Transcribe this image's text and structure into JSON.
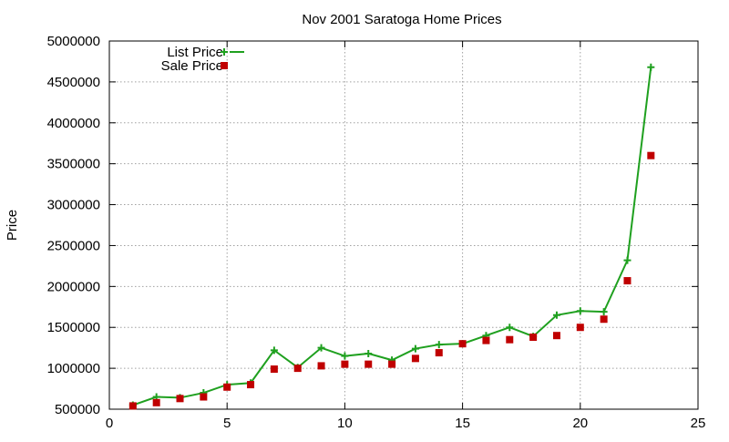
{
  "chart_data": {
    "type": "line",
    "title": "Nov 2001 Saratoga Home Prices",
    "xlabel": "",
    "ylabel": "Price",
    "xlim": [
      0,
      25
    ],
    "ylim": [
      500000,
      5000000
    ],
    "xticks": [
      0,
      5,
      10,
      15,
      20,
      25
    ],
    "yticks": [
      500000,
      1000000,
      1500000,
      2000000,
      2500000,
      3000000,
      3500000,
      4000000,
      4500000,
      5000000
    ],
    "grid": true,
    "legend_position": "top-left",
    "x": [
      1,
      2,
      3,
      4,
      5,
      6,
      7,
      8,
      9,
      10,
      11,
      12,
      13,
      14,
      15,
      16,
      17,
      18,
      19,
      20,
      21,
      22,
      23
    ],
    "series": [
      {
        "name": "List Price",
        "style": "line-with-plus-markers",
        "color": "#1fa01f",
        "values": [
          550000,
          650000,
          640000,
          700000,
          800000,
          820000,
          1220000,
          1010000,
          1250000,
          1150000,
          1180000,
          1100000,
          1240000,
          1290000,
          1300000,
          1400000,
          1500000,
          1390000,
          1650000,
          1700000,
          1690000,
          2320000,
          4680000
        ]
      },
      {
        "name": "Sale Price",
        "style": "square-markers",
        "color": "#c00000",
        "values": [
          540000,
          580000,
          630000,
          650000,
          770000,
          800000,
          990000,
          1000000,
          1030000,
          1050000,
          1050000,
          1050000,
          1120000,
          1190000,
          1300000,
          1340000,
          1350000,
          1380000,
          1400000,
          1500000,
          1600000,
          2070000,
          3600000
        ]
      }
    ]
  }
}
